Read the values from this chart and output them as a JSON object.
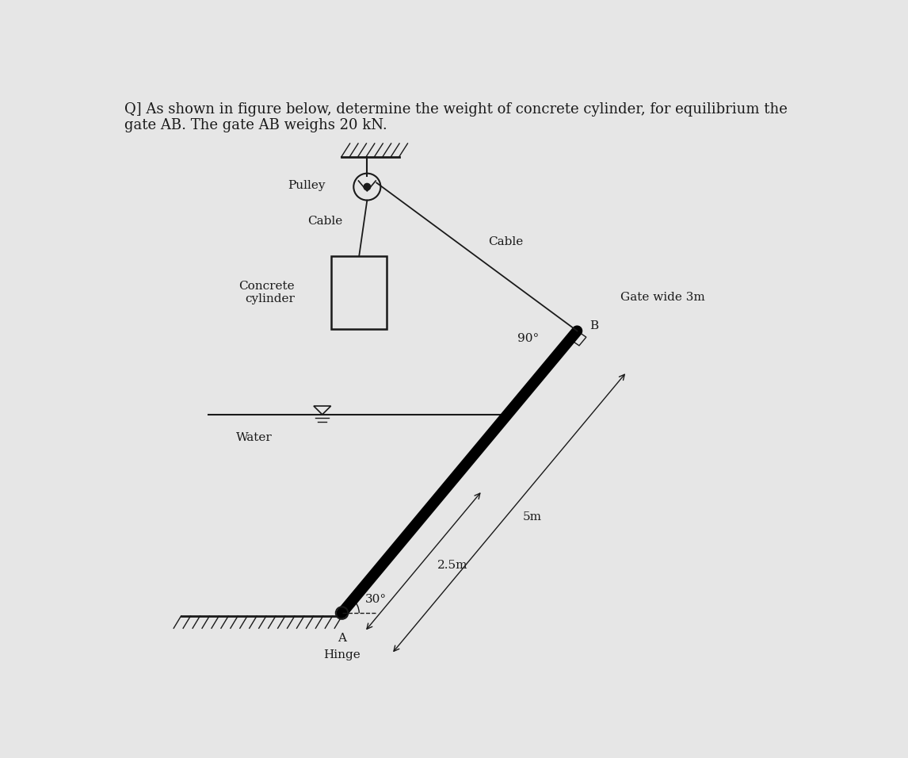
{
  "bg_color": "#e6e6e6",
  "title_text": "Q] As shown in figure below, determine the weight of concrete cylinder, for equilibrium the\ngate AB. The gate AB weighs 20 kN.",
  "title_fontsize": 13,
  "title_color": "#1a1a1a",
  "text_color": "#1a1a1a",
  "line_color": "#1a1a1a",
  "gate_color": "#000000",
  "label_pulley": "Pulley",
  "label_cable_left": "Cable",
  "label_cable_right": "Cable",
  "label_concrete": "Concrete\ncylinder",
  "label_gate_wide": "Gate wide 3m",
  "label_B": "B",
  "label_90": "90°",
  "label_water": "Water",
  "label_5m": "5m",
  "label_2_5m": "2.5m",
  "label_30": "30°",
  "label_A": "A",
  "label_hinge": "Hinge"
}
